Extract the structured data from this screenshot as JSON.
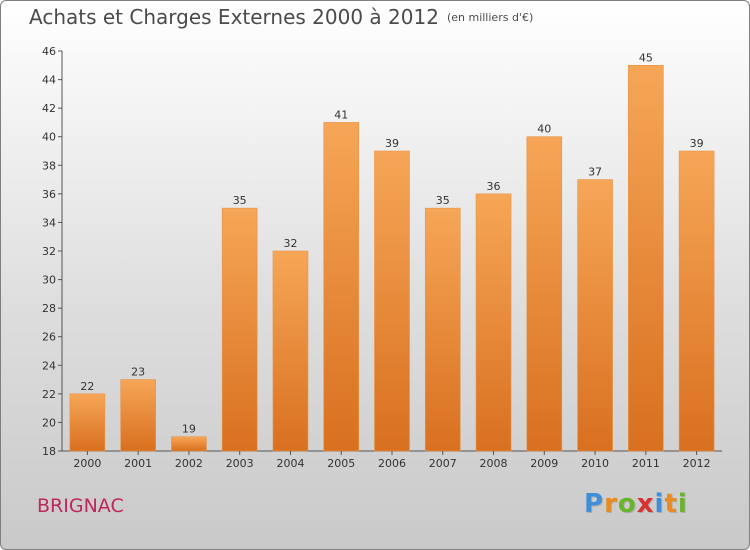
{
  "chart_data": {
    "type": "bar",
    "title": "Achats et Charges Externes 2000 à 2012",
    "subtitle": "(en milliers d'€)",
    "categories": [
      "2000",
      "2001",
      "2002",
      "2003",
      "2004",
      "2005",
      "2006",
      "2007",
      "2008",
      "2009",
      "2010",
      "2011",
      "2012"
    ],
    "values": [
      22,
      23,
      19,
      35,
      32,
      41,
      39,
      35,
      36,
      40,
      37,
      45,
      39
    ],
    "ylim": [
      18,
      46
    ],
    "yticks": [
      18,
      20,
      22,
      24,
      26,
      28,
      30,
      32,
      34,
      36,
      38,
      40,
      42,
      44,
      46
    ],
    "grid": false,
    "bar_color_top": "#f6a657",
    "bar_color_bottom": "#d8701f"
  },
  "footer": {
    "commune": "BRIGNAC",
    "logo_letters": [
      "P",
      "r",
      "o",
      "x",
      "i",
      "t",
      "i"
    ],
    "logo_colors": [
      "#3e8fd8",
      "#e98b1f",
      "#6ab42c",
      "#d8312f",
      "#3e8fd8",
      "#e98b1f",
      "#6ab42c"
    ]
  }
}
